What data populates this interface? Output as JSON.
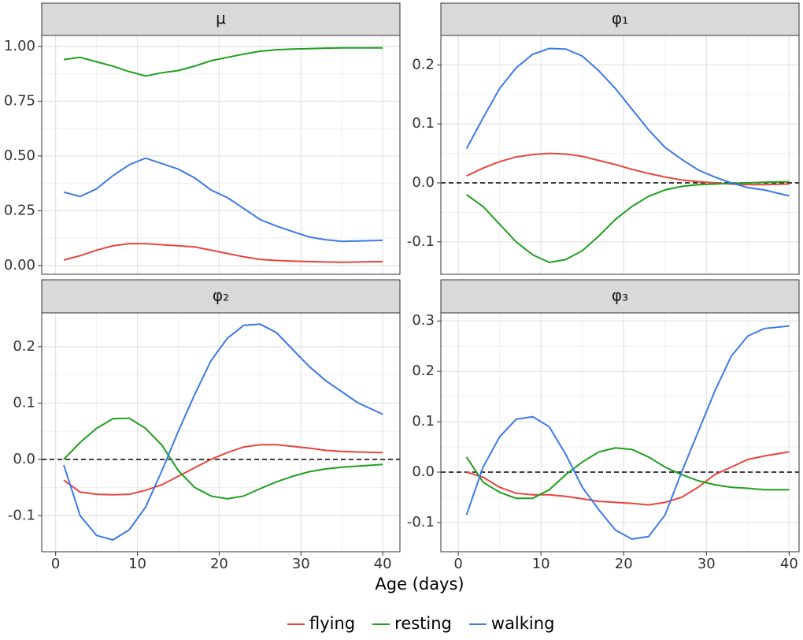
{
  "chart_data": [
    {
      "type": "line",
      "title": "μ",
      "grid": true,
      "xlim": [
        -1.7,
        42.1
      ],
      "ylim": [
        -0.04,
        1.05
      ],
      "xticks": [
        0,
        10,
        20,
        30,
        40
      ],
      "yticks": [
        {
          "value": 0,
          "label": "0.00"
        },
        {
          "value": 0.25,
          "label": "0.25"
        },
        {
          "value": 0.5,
          "label": "0.50"
        },
        {
          "value": 0.75,
          "label": "0.75"
        },
        {
          "value": 1,
          "label": "1.00"
        }
      ],
      "x": [
        1,
        3,
        5,
        7,
        9,
        11,
        13,
        15,
        17,
        19,
        21,
        23,
        25,
        27,
        29,
        31,
        33,
        35,
        37,
        40
      ],
      "series": [
        {
          "name": "flying",
          "color": "#e8453c",
          "values": [
            0.025,
            0.045,
            0.07,
            0.09,
            0.1,
            0.1,
            0.095,
            0.09,
            0.085,
            0.07,
            0.055,
            0.04,
            0.028,
            0.023,
            0.02,
            0.018,
            0.016,
            0.015,
            0.016,
            0.018
          ]
        },
        {
          "name": "resting",
          "color": "#1fa01f",
          "values": [
            0.94,
            0.95,
            0.93,
            0.91,
            0.885,
            0.865,
            0.88,
            0.89,
            0.91,
            0.935,
            0.95,
            0.965,
            0.978,
            0.985,
            0.988,
            0.99,
            0.992,
            0.993,
            0.993,
            0.993
          ]
        },
        {
          "name": "walking",
          "color": "#3b7ae8",
          "values": [
            0.335,
            0.315,
            0.35,
            0.41,
            0.46,
            0.49,
            0.465,
            0.44,
            0.4,
            0.345,
            0.31,
            0.26,
            0.21,
            0.18,
            0.155,
            0.13,
            0.118,
            0.11,
            0.112,
            0.115
          ]
        }
      ]
    },
    {
      "type": "line",
      "title": "φ₁",
      "grid": true,
      "hline": 0,
      "xlim": [
        -2.1,
        41.2
      ],
      "ylim": [
        -0.155,
        0.25
      ],
      "xticks": [
        0,
        10,
        20,
        30,
        40
      ],
      "yticks": [
        -0.1,
        {
          "value": 0,
          "label": "0.0"
        },
        0.1,
        0.2
      ],
      "x": [
        1,
        3,
        5,
        7,
        9,
        11,
        13,
        15,
        17,
        19,
        21,
        23,
        25,
        27,
        29,
        31,
        33,
        35,
        37,
        40
      ],
      "series": [
        {
          "name": "flying",
          "color": "#e8453c",
          "values": [
            0.012,
            0.025,
            0.036,
            0.044,
            0.048,
            0.05,
            0.049,
            0.045,
            0.038,
            0.031,
            0.023,
            0.016,
            0.01,
            0.005,
            0.002,
            0,
            -0.002,
            -0.003,
            -0.003,
            -0.002
          ]
        },
        {
          "name": "resting",
          "color": "#1fa01f",
          "values": [
            -0.02,
            -0.04,
            -0.07,
            -0.1,
            -0.122,
            -0.135,
            -0.13,
            -0.115,
            -0.09,
            -0.062,
            -0.04,
            -0.023,
            -0.012,
            -0.006,
            -0.003,
            -0.002,
            -0.001,
            0,
            0.001,
            0.002
          ]
        },
        {
          "name": "walking",
          "color": "#3b7ae8",
          "values": [
            0.058,
            0.11,
            0.16,
            0.195,
            0.218,
            0.228,
            0.227,
            0.215,
            0.19,
            0.16,
            0.125,
            0.09,
            0.06,
            0.04,
            0.022,
            0.01,
            0,
            -0.008,
            -0.012,
            -0.022
          ]
        }
      ]
    },
    {
      "type": "line",
      "title": "φ₂",
      "grid": true,
      "hline": 0,
      "xlim": [
        -1.7,
        42.1
      ],
      "ylim": [
        -0.164,
        0.26
      ],
      "xticks": [
        0,
        10,
        20,
        30,
        40
      ],
      "yticks": [
        -0.1,
        {
          "value": 0,
          "label": "0.0"
        },
        0.1,
        0.2
      ],
      "x": [
        1,
        3,
        5,
        7,
        9,
        11,
        13,
        15,
        17,
        19,
        21,
        23,
        25,
        27,
        29,
        31,
        33,
        35,
        37,
        40
      ],
      "series": [
        {
          "name": "flying",
          "color": "#e8453c",
          "values": [
            -0.037,
            -0.058,
            -0.062,
            -0.063,
            -0.062,
            -0.055,
            -0.045,
            -0.03,
            -0.015,
            0,
            0.012,
            0.022,
            0.026,
            0.026,
            0.023,
            0.02,
            0.016,
            0.014,
            0.013,
            0.012
          ]
        },
        {
          "name": "resting",
          "color": "#1fa01f",
          "values": [
            0,
            0.03,
            0.055,
            0.072,
            0.073,
            0.055,
            0.025,
            -0.02,
            -0.05,
            -0.065,
            -0.07,
            -0.065,
            -0.052,
            -0.04,
            -0.03,
            -0.022,
            -0.017,
            -0.014,
            -0.012,
            -0.009
          ]
        },
        {
          "name": "walking",
          "color": "#3b7ae8",
          "values": [
            -0.01,
            -0.1,
            -0.135,
            -0.143,
            -0.125,
            -0.085,
            -0.02,
            0.05,
            0.115,
            0.175,
            0.215,
            0.238,
            0.24,
            0.225,
            0.195,
            0.165,
            0.14,
            0.12,
            0.1,
            0.08
          ]
        }
      ]
    },
    {
      "type": "line",
      "title": "φ₃",
      "grid": true,
      "hline": 0,
      "xlim": [
        -2.1,
        41.2
      ],
      "ylim": [
        -0.158,
        0.316
      ],
      "xticks": [
        0,
        10,
        20,
        30,
        40
      ],
      "yticks": [
        -0.1,
        {
          "value": 0,
          "label": "0.0"
        },
        0.1,
        0.2,
        0.3
      ],
      "x": [
        1,
        3,
        5,
        7,
        9,
        11,
        13,
        15,
        17,
        19,
        21,
        23,
        25,
        27,
        29,
        31,
        33,
        35,
        37,
        40
      ],
      "series": [
        {
          "name": "flying",
          "color": "#e8453c",
          "values": [
            0,
            -0.01,
            -0.03,
            -0.042,
            -0.045,
            -0.045,
            -0.048,
            -0.053,
            -0.058,
            -0.06,
            -0.062,
            -0.065,
            -0.06,
            -0.05,
            -0.03,
            -0.005,
            0.01,
            0.025,
            0.032,
            0.04
          ]
        },
        {
          "name": "resting",
          "color": "#1fa01f",
          "values": [
            0.03,
            -0.02,
            -0.04,
            -0.052,
            -0.052,
            -0.035,
            -0.005,
            0.02,
            0.04,
            0.048,
            0.045,
            0.03,
            0.01,
            -0.005,
            -0.017,
            -0.025,
            -0.03,
            -0.032,
            -0.035,
            -0.035
          ]
        },
        {
          "name": "walking",
          "color": "#3b7ae8",
          "values": [
            -0.085,
            0.01,
            0.07,
            0.105,
            0.11,
            0.09,
            0.035,
            -0.03,
            -0.075,
            -0.115,
            -0.133,
            -0.128,
            -0.085,
            0,
            0.08,
            0.16,
            0.23,
            0.27,
            0.285,
            0.29
          ]
        }
      ]
    }
  ],
  "xlabel": "Age (days)"
}
